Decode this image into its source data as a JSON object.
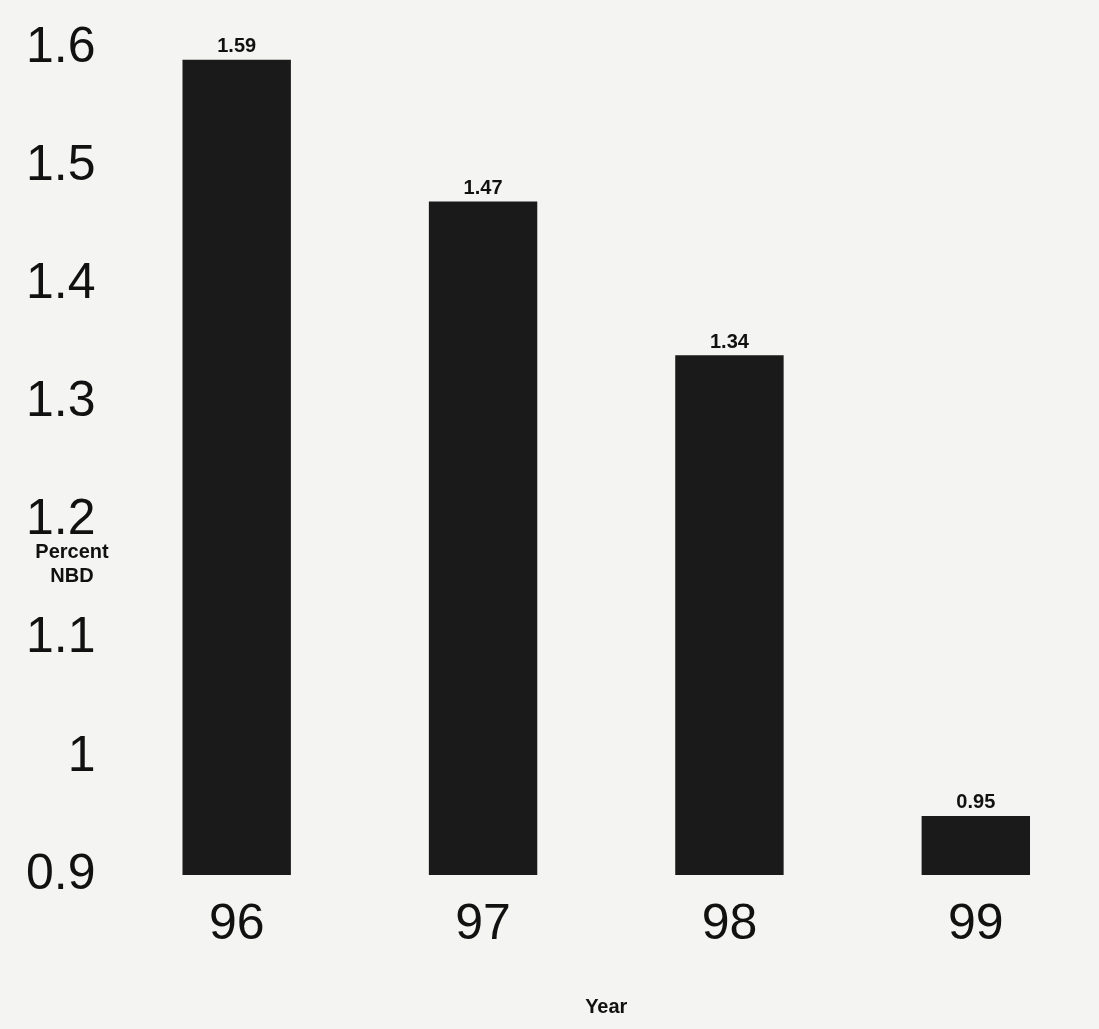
{
  "chart_data": {
    "type": "bar",
    "xlabel": "Year",
    "ylabel": "Percent NBD",
    "categories": [
      "96",
      "97",
      "98",
      "99"
    ],
    "values": [
      1.59,
      1.47,
      1.34,
      0.95
    ],
    "color": "#1a1a1a",
    "ylim": [
      0.9,
      1.6
    ],
    "yticks": [
      0.9,
      1,
      1.1,
      1.2,
      1.3,
      1.4,
      1.5,
      1.6
    ],
    "grid": false,
    "legend": false,
    "data_labels": true
  }
}
